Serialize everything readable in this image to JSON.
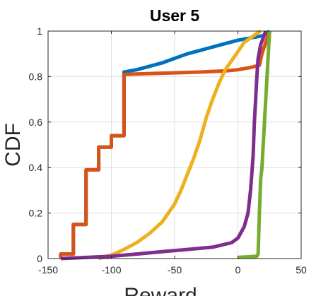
{
  "chart_data": {
    "type": "line",
    "title": "User 5",
    "xlabel": "Reward",
    "ylabel": "CDF",
    "xlim": [
      -150,
      50
    ],
    "ylim": [
      0,
      1
    ],
    "xticks": [
      -150,
      -100,
      -50,
      0,
      50
    ],
    "yticks": [
      0,
      0.2,
      0.4,
      0.6,
      0.8,
      1
    ],
    "xtick_labels": [
      "-150",
      "-100",
      "-50",
      "0",
      "50"
    ],
    "ytick_labels": [
      "0",
      "0.2",
      "0.4",
      "0.6",
      "0.8",
      "1"
    ],
    "grid": true,
    "series": [
      {
        "color": "#0072BD",
        "points": [
          [
            -140,
            0
          ],
          [
            -140,
            0.02
          ],
          [
            -130,
            0.02
          ],
          [
            -130,
            0.15
          ],
          [
            -120,
            0.15
          ],
          [
            -120,
            0.39
          ],
          [
            -110,
            0.39
          ],
          [
            -110,
            0.49
          ],
          [
            -100,
            0.49
          ],
          [
            -100,
            0.54
          ],
          [
            -90,
            0.54
          ],
          [
            -90,
            0.82
          ],
          [
            -80,
            0.83
          ],
          [
            -70,
            0.845
          ],
          [
            -60,
            0.86
          ],
          [
            -50,
            0.88
          ],
          [
            -40,
            0.9
          ],
          [
            -30,
            0.915
          ],
          [
            -20,
            0.93
          ],
          [
            -10,
            0.945
          ],
          [
            0,
            0.96
          ],
          [
            10,
            0.97
          ],
          [
            20,
            0.98
          ],
          [
            25,
            1
          ]
        ]
      },
      {
        "color": "#D95319",
        "points": [
          [
            -140,
            0
          ],
          [
            -140,
            0.02
          ],
          [
            -130,
            0.02
          ],
          [
            -130,
            0.15
          ],
          [
            -120,
            0.15
          ],
          [
            -120,
            0.39
          ],
          [
            -110,
            0.39
          ],
          [
            -110,
            0.49
          ],
          [
            -100,
            0.49
          ],
          [
            -100,
            0.54
          ],
          [
            -90,
            0.54
          ],
          [
            -90,
            0.81
          ],
          [
            -60,
            0.815
          ],
          [
            -30,
            0.82
          ],
          [
            -10,
            0.825
          ],
          [
            0,
            0.83
          ],
          [
            10,
            0.84
          ],
          [
            17,
            0.85
          ],
          [
            19,
            0.9
          ],
          [
            22,
            0.95
          ],
          [
            25,
            1
          ]
        ]
      },
      {
        "color": "#EDB120",
        "points": [
          [
            -110,
            0
          ],
          [
            -100,
            0.015
          ],
          [
            -90,
            0.04
          ],
          [
            -80,
            0.07
          ],
          [
            -70,
            0.11
          ],
          [
            -60,
            0.16
          ],
          [
            -50,
            0.24
          ],
          [
            -45,
            0.3
          ],
          [
            -40,
            0.37
          ],
          [
            -35,
            0.44
          ],
          [
            -30,
            0.52
          ],
          [
            -25,
            0.62
          ],
          [
            -20,
            0.7
          ],
          [
            -15,
            0.77
          ],
          [
            -10,
            0.83
          ],
          [
            -5,
            0.87
          ],
          [
            0,
            0.91
          ],
          [
            5,
            0.95
          ],
          [
            10,
            0.97
          ],
          [
            15,
            0.99
          ],
          [
            18,
            1
          ]
        ]
      },
      {
        "color": "#7E2F8E",
        "points": [
          [
            -140,
            0
          ],
          [
            -120,
            0.005
          ],
          [
            -100,
            0.01
          ],
          [
            -80,
            0.02
          ],
          [
            -60,
            0.03
          ],
          [
            -40,
            0.04
          ],
          [
            -20,
            0.05
          ],
          [
            -5,
            0.07
          ],
          [
            0,
            0.09
          ],
          [
            5,
            0.14
          ],
          [
            8,
            0.2
          ],
          [
            10,
            0.3
          ],
          [
            12,
            0.45
          ],
          [
            13,
            0.6
          ],
          [
            14,
            0.7
          ],
          [
            15,
            0.8
          ],
          [
            16,
            0.88
          ],
          [
            18,
            0.94
          ],
          [
            20,
            0.97
          ],
          [
            22,
            1
          ]
        ]
      },
      {
        "color": "#77AC30",
        "points": [
          [
            0,
            0.005
          ],
          [
            15,
            0.01
          ],
          [
            16,
            0.02
          ],
          [
            17,
            0.2
          ],
          [
            18,
            0.35
          ],
          [
            19,
            0.4
          ],
          [
            20,
            0.5
          ],
          [
            21,
            0.6
          ],
          [
            22,
            0.7
          ],
          [
            23,
            0.8
          ],
          [
            24,
            0.9
          ],
          [
            25,
            1
          ]
        ]
      }
    ]
  }
}
